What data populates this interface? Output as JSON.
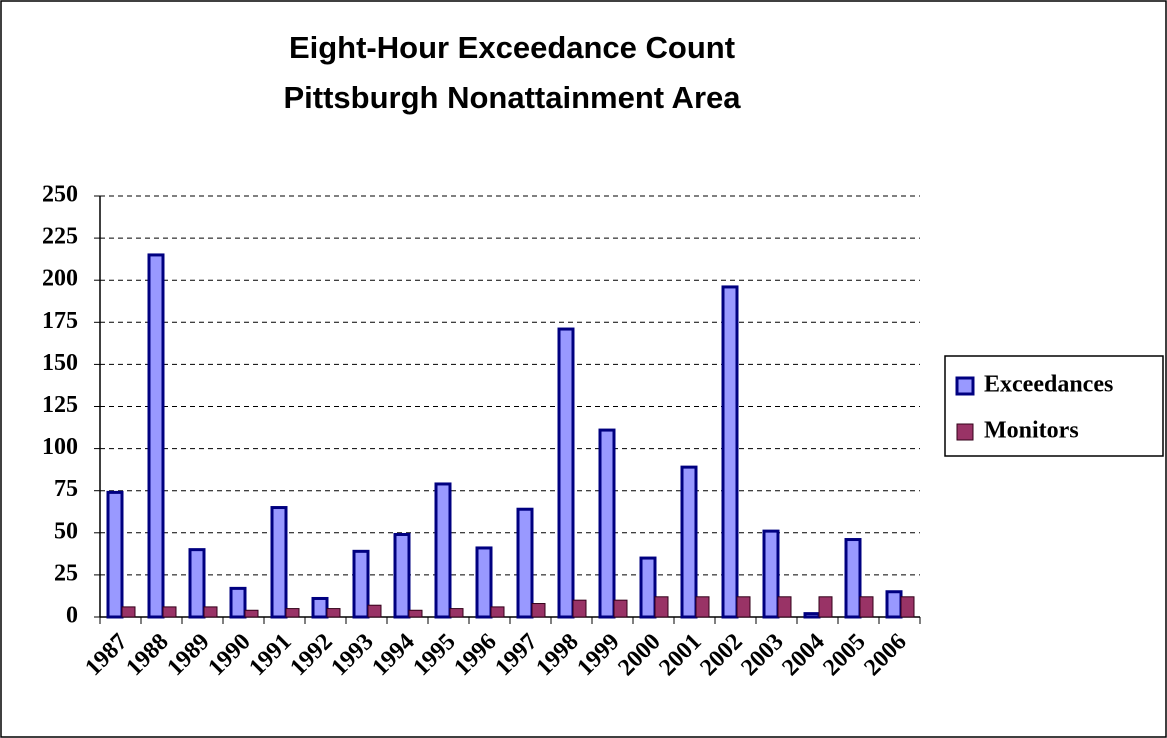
{
  "chart_data": {
    "type": "bar",
    "title": [
      "Eight-Hour Exceedance Count",
      "Pittsburgh Nonattainment Area"
    ],
    "categories": [
      "1987",
      "1988",
      "1989",
      "1990",
      "1991",
      "1992",
      "1993",
      "1994",
      "1995",
      "1996",
      "1997",
      "1998",
      "1999",
      "2000",
      "2001",
      "2002",
      "2003",
      "2004",
      "2005",
      "2006"
    ],
    "series": [
      {
        "name": "Exceedances",
        "color": "#9999ff",
        "values": [
          74,
          215,
          40,
          17,
          65,
          11,
          39,
          49,
          79,
          41,
          64,
          171,
          111,
          35,
          89,
          196,
          51,
          2,
          46,
          15
        ]
      },
      {
        "name": "Monitors",
        "color": "#993366",
        "values": [
          6,
          6,
          6,
          4,
          5,
          5,
          7,
          4,
          5,
          6,
          8,
          10,
          10,
          12,
          12,
          12,
          12,
          12,
          12,
          12
        ]
      }
    ],
    "ylim": [
      0,
      250
    ],
    "yticks": [
      0,
      25,
      50,
      75,
      100,
      125,
      150,
      175,
      200,
      225,
      250
    ],
    "grid": true,
    "legend": "right"
  }
}
